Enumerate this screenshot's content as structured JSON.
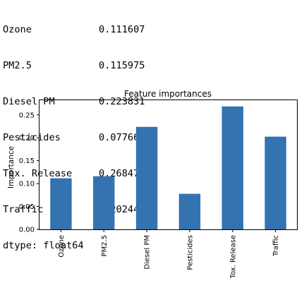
{
  "console": {
    "rows": [
      {
        "name": "Ozone",
        "value": "0.111607"
      },
      {
        "name": "PM2.5",
        "value": "0.115975"
      },
      {
        "name": "Diesel PM",
        "value": "0.223831"
      },
      {
        "name": "Pesticides",
        "value": "0.077667"
      },
      {
        "name": "Tox. Release",
        "value": "0.268476"
      },
      {
        "name": "Traffic",
        "value": "0.202445"
      }
    ],
    "dtype": "dtype: float64"
  },
  "chart_data": {
    "type": "bar",
    "title": "Feature importances",
    "xlabel": "",
    "ylabel": "Importance",
    "categories": [
      "Ozone",
      "PM2.5",
      "Diesel PM",
      "Pesticides",
      "Tox. Release",
      "Traffic"
    ],
    "values": [
      0.111607,
      0.115975,
      0.223831,
      0.077667,
      0.268476,
      0.202445
    ],
    "ylim": [
      0,
      0.282
    ],
    "yticks": [
      "0.00",
      "0.05",
      "0.10",
      "0.15",
      "0.20",
      "0.25"
    ],
    "bar_color": "#3572b0",
    "grid": false,
    "legend": false
  }
}
